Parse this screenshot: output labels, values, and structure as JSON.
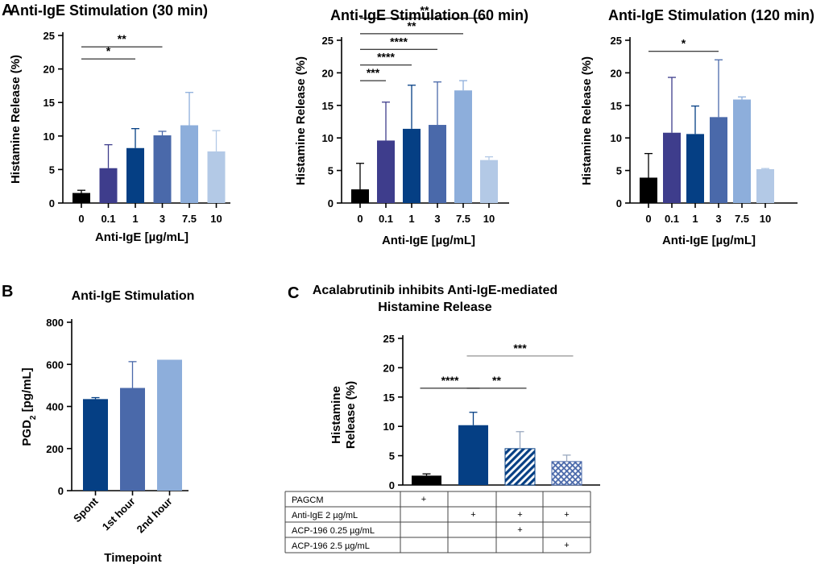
{
  "colors": {
    "black": "#000000",
    "indigo": "#3e3d8c",
    "navy": "#053f84",
    "steel": "#4a69aa",
    "sky": "#8daedb",
    "pale": "#b3c9e6"
  },
  "chart_data": [
    {
      "id": "a1",
      "panel": "A",
      "type": "bar",
      "title": "Anti-IgE Stimulation (30 min)",
      "xlabel": "Anti-IgE [µg/mL]",
      "ylabel": "Histamine Release (%)",
      "ylim": [
        0,
        25
      ],
      "yticks": [
        0,
        5,
        10,
        15,
        20,
        25
      ],
      "categories": [
        "0",
        "0.1",
        "1",
        "3",
        "7.5",
        "10"
      ],
      "values": [
        1.5,
        5.2,
        8.2,
        10.1,
        11.6,
        7.7
      ],
      "errors": [
        0.4,
        3.5,
        2.9,
        0.6,
        4.9,
        3.1
      ],
      "colors": [
        "#000000",
        "#3e3d8c",
        "#053f84",
        "#4a69aa",
        "#8daedb",
        "#b3c9e6"
      ],
      "significance": [
        {
          "from": 0,
          "to": 2,
          "label": "*",
          "y": 21.5
        },
        {
          "from": 0,
          "to": 3,
          "label": "**",
          "y": 23.3
        }
      ]
    },
    {
      "id": "a2",
      "type": "bar",
      "title": "Anti-IgE Stimulation (60 min)",
      "xlabel": "Anti-IgE [µg/mL]",
      "ylabel": "Histamine Release (%)",
      "ylim": [
        0,
        25
      ],
      "yticks": [
        0,
        5,
        10,
        15,
        20,
        25
      ],
      "categories": [
        "0",
        "0.1",
        "1",
        "3",
        "7.5",
        "10"
      ],
      "values": [
        2.1,
        9.6,
        11.4,
        12.0,
        17.3,
        6.6
      ],
      "errors": [
        4.0,
        5.9,
        6.7,
        6.6,
        1.5,
        0.5
      ],
      "colors": [
        "#000000",
        "#3e3d8c",
        "#053f84",
        "#4a69aa",
        "#8daedb",
        "#b3c9e6"
      ],
      "significance": [
        {
          "from": 0,
          "to": 1,
          "label": "***",
          "y": 18.8
        },
        {
          "from": 0,
          "to": 2,
          "label": "****",
          "y": 21.2
        },
        {
          "from": 0,
          "to": 3,
          "label": "****",
          "y": 23.6
        },
        {
          "from": 0,
          "to": 4,
          "label": "**",
          "y": 26.0
        },
        {
          "from": 0,
          "to": 5,
          "label": "**",
          "y": 28.4
        }
      ]
    },
    {
      "id": "a3",
      "type": "bar",
      "title": "Anti-IgE Stimulation (120 min)",
      "xlabel": "Anti-IgE [µg/mL]",
      "ylabel": "Histamine Release (%)",
      "ylim": [
        0,
        25
      ],
      "yticks": [
        0,
        5,
        10,
        15,
        20,
        25
      ],
      "categories": [
        "0",
        "0.1",
        "1",
        "3",
        "7.5",
        "10"
      ],
      "values": [
        3.9,
        10.8,
        10.6,
        13.2,
        15.9,
        5.2
      ],
      "errors": [
        3.7,
        8.5,
        4.3,
        8.8,
        0.4,
        0.1
      ],
      "colors": [
        "#000000",
        "#3e3d8c",
        "#053f84",
        "#4a69aa",
        "#8daedb",
        "#b3c9e6"
      ],
      "significance": [
        {
          "from": 0,
          "to": 3,
          "label": "*",
          "y": 23.3
        }
      ]
    },
    {
      "id": "b",
      "panel": "B",
      "type": "bar",
      "title": "Anti-IgE Stimulation",
      "xlabel": "Timepoint",
      "ylabel_main": "PGD",
      "ylabel_sub": "2",
      "ylabel_tail": " [pg/mL]",
      "ylim": [
        0,
        800
      ],
      "yticks": [
        0,
        200,
        400,
        600,
        800
      ],
      "categories": [
        "Spont",
        "1st  hour",
        "2nd hour"
      ],
      "values": [
        435,
        488,
        622
      ],
      "errors": [
        7,
        125,
        0
      ],
      "colors": [
        "#053f84",
        "#4a69aa",
        "#8daedb"
      ],
      "significance": []
    },
    {
      "id": "c",
      "panel": "C",
      "type": "bar",
      "title_line1": "Acalabrutinib inhibits Anti-IgE-mediated",
      "title_line2": "Histamine Release",
      "ylabel_line1": "Histamine",
      "ylabel_line2": "Release (%)",
      "ylim": [
        0,
        25
      ],
      "yticks": [
        0,
        5,
        10,
        15,
        20,
        25
      ],
      "values": [
        1.6,
        10.2,
        6.2,
        4.0
      ],
      "errors": [
        0.3,
        2.2,
        2.9,
        1.1
      ],
      "colors": [
        "#000000",
        "#053f84",
        "#053f84",
        "#4a69aa"
      ],
      "patterns": [
        "solid",
        "solid",
        "diagonal",
        "crosshatch"
      ],
      "significance": [
        {
          "from": 0,
          "to": 1,
          "label": "****",
          "y": 16.5,
          "grey": false
        },
        {
          "from": 1,
          "to": 2,
          "label": "**",
          "y": 16.5,
          "grey": false
        },
        {
          "from": 1,
          "to": 3,
          "label": "***",
          "y": 22.0,
          "grey": true
        }
      ],
      "table": {
        "rows": [
          {
            "label": "PAGCM",
            "marks": [
              "+",
              "",
              "",
              ""
            ]
          },
          {
            "label": "Anti-IgE 2 µg/mL",
            "marks": [
              "",
              "+",
              "+",
              "+"
            ]
          },
          {
            "label": "ACP-196 0.25 µg/mL",
            "marks": [
              "",
              "",
              "+",
              ""
            ]
          },
          {
            "label": "ACP-196 2.5 µg/mL",
            "marks": [
              "",
              "",
              "",
              "+"
            ]
          }
        ]
      }
    }
  ]
}
